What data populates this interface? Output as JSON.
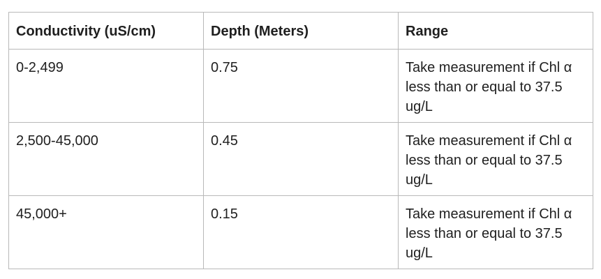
{
  "table": {
    "headers": [
      "Conductivity (uS/cm)",
      "Depth (Meters)",
      "Range"
    ],
    "rows": [
      [
        "0-2,499",
        "0.75",
        "Take measurement if Chl α less than or equal to 37.5 ug/L"
      ],
      [
        "2,500-45,000",
        "0.45",
        "Take measurement if Chl α less than or equal to 37.5 ug/L"
      ],
      [
        "45,000+",
        "0.15",
        "Take measurement if Chl α less than or equal to 37.5 ug/L"
      ]
    ]
  }
}
